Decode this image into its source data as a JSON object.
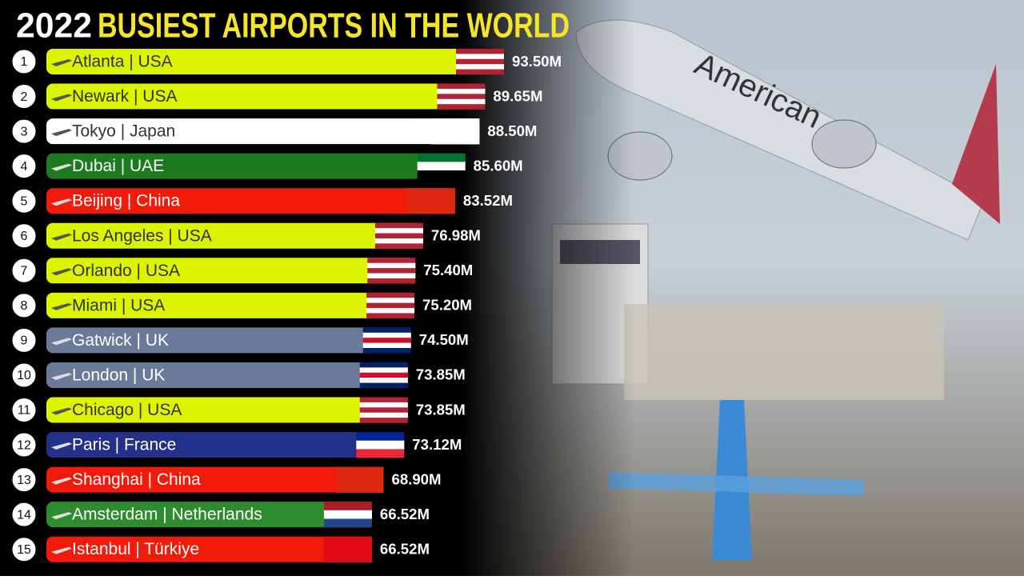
{
  "chart_data": {
    "type": "bar",
    "orientation": "horizontal",
    "title": "2022",
    "subtitle": "BUSIEST AIRPORTS IN THE WORLD",
    "ranks": [
      "1",
      "2",
      "3",
      "4",
      "5",
      "6",
      "7",
      "8",
      "9",
      "10",
      "11",
      "12",
      "13",
      "14",
      "15"
    ],
    "categories": [
      "Atlanta | USA",
      "Newark | USA",
      "Tokyo | Japan",
      "Dubai | UAE",
      "Beijing | China",
      "Los Angeles | USA",
      "Orlando | USA",
      "Miami | USA",
      "Gatwick | UK",
      "London | UK",
      "Chicago | USA",
      "Paris | France",
      "Shanghai | China",
      "Amsterdam | Netherlands",
      "Istanbul | Türkiye"
    ],
    "values": [
      93.5,
      89.65,
      88.5,
      85.6,
      83.52,
      76.98,
      75.4,
      75.2,
      74.5,
      73.85,
      73.85,
      73.12,
      68.9,
      66.52,
      66.52
    ],
    "value_labels": [
      "93.50M",
      "89.65M",
      "88.50M",
      "85.60M",
      "83.52M",
      "76.98M",
      "75.40M",
      "75.20M",
      "74.50M",
      "73.85M",
      "73.85M",
      "73.12M",
      "68.90M",
      "66.52M",
      "66.52M"
    ],
    "colors": [
      "#dcf400",
      "#dcf400",
      "#ffffff",
      "#1e7a1e",
      "#f21a0a",
      "#dcf400",
      "#dcf400",
      "#dcf400",
      "#6b7a99",
      "#6b7a99",
      "#dcf400",
      "#23318a",
      "#f21a0a",
      "#2e8b2e",
      "#f21a0a"
    ],
    "flag_colors": [
      [
        "#b22234",
        "#ffffff",
        "#b22234",
        "#ffffff",
        "#b22234"
      ],
      [
        "#b22234",
        "#ffffff",
        "#b22234",
        "#ffffff",
        "#b22234"
      ],
      [
        "#ffffff",
        "#ffffff",
        "#ffffff"
      ],
      [
        "#00732f",
        "#ffffff",
        "#000000"
      ],
      [
        "#de2910",
        "#de2910",
        "#de2910"
      ],
      [
        "#b22234",
        "#ffffff",
        "#b22234",
        "#ffffff",
        "#b22234"
      ],
      [
        "#b22234",
        "#ffffff",
        "#b22234",
        "#ffffff",
        "#b22234"
      ],
      [
        "#b22234",
        "#ffffff",
        "#b22234",
        "#ffffff",
        "#b22234"
      ],
      [
        "#012169",
        "#ffffff",
        "#c8102e",
        "#ffffff",
        "#012169"
      ],
      [
        "#012169",
        "#ffffff",
        "#c8102e",
        "#ffffff",
        "#012169"
      ],
      [
        "#b22234",
        "#ffffff",
        "#b22234",
        "#ffffff",
        "#b22234"
      ],
      [
        "#002395",
        "#ffffff",
        "#ed2939"
      ],
      [
        "#de2910",
        "#de2910",
        "#de2910"
      ],
      [
        "#ae1c28",
        "#ffffff",
        "#21468b"
      ],
      [
        "#e30a17",
        "#e30a17",
        "#e30a17"
      ]
    ]
  }
}
